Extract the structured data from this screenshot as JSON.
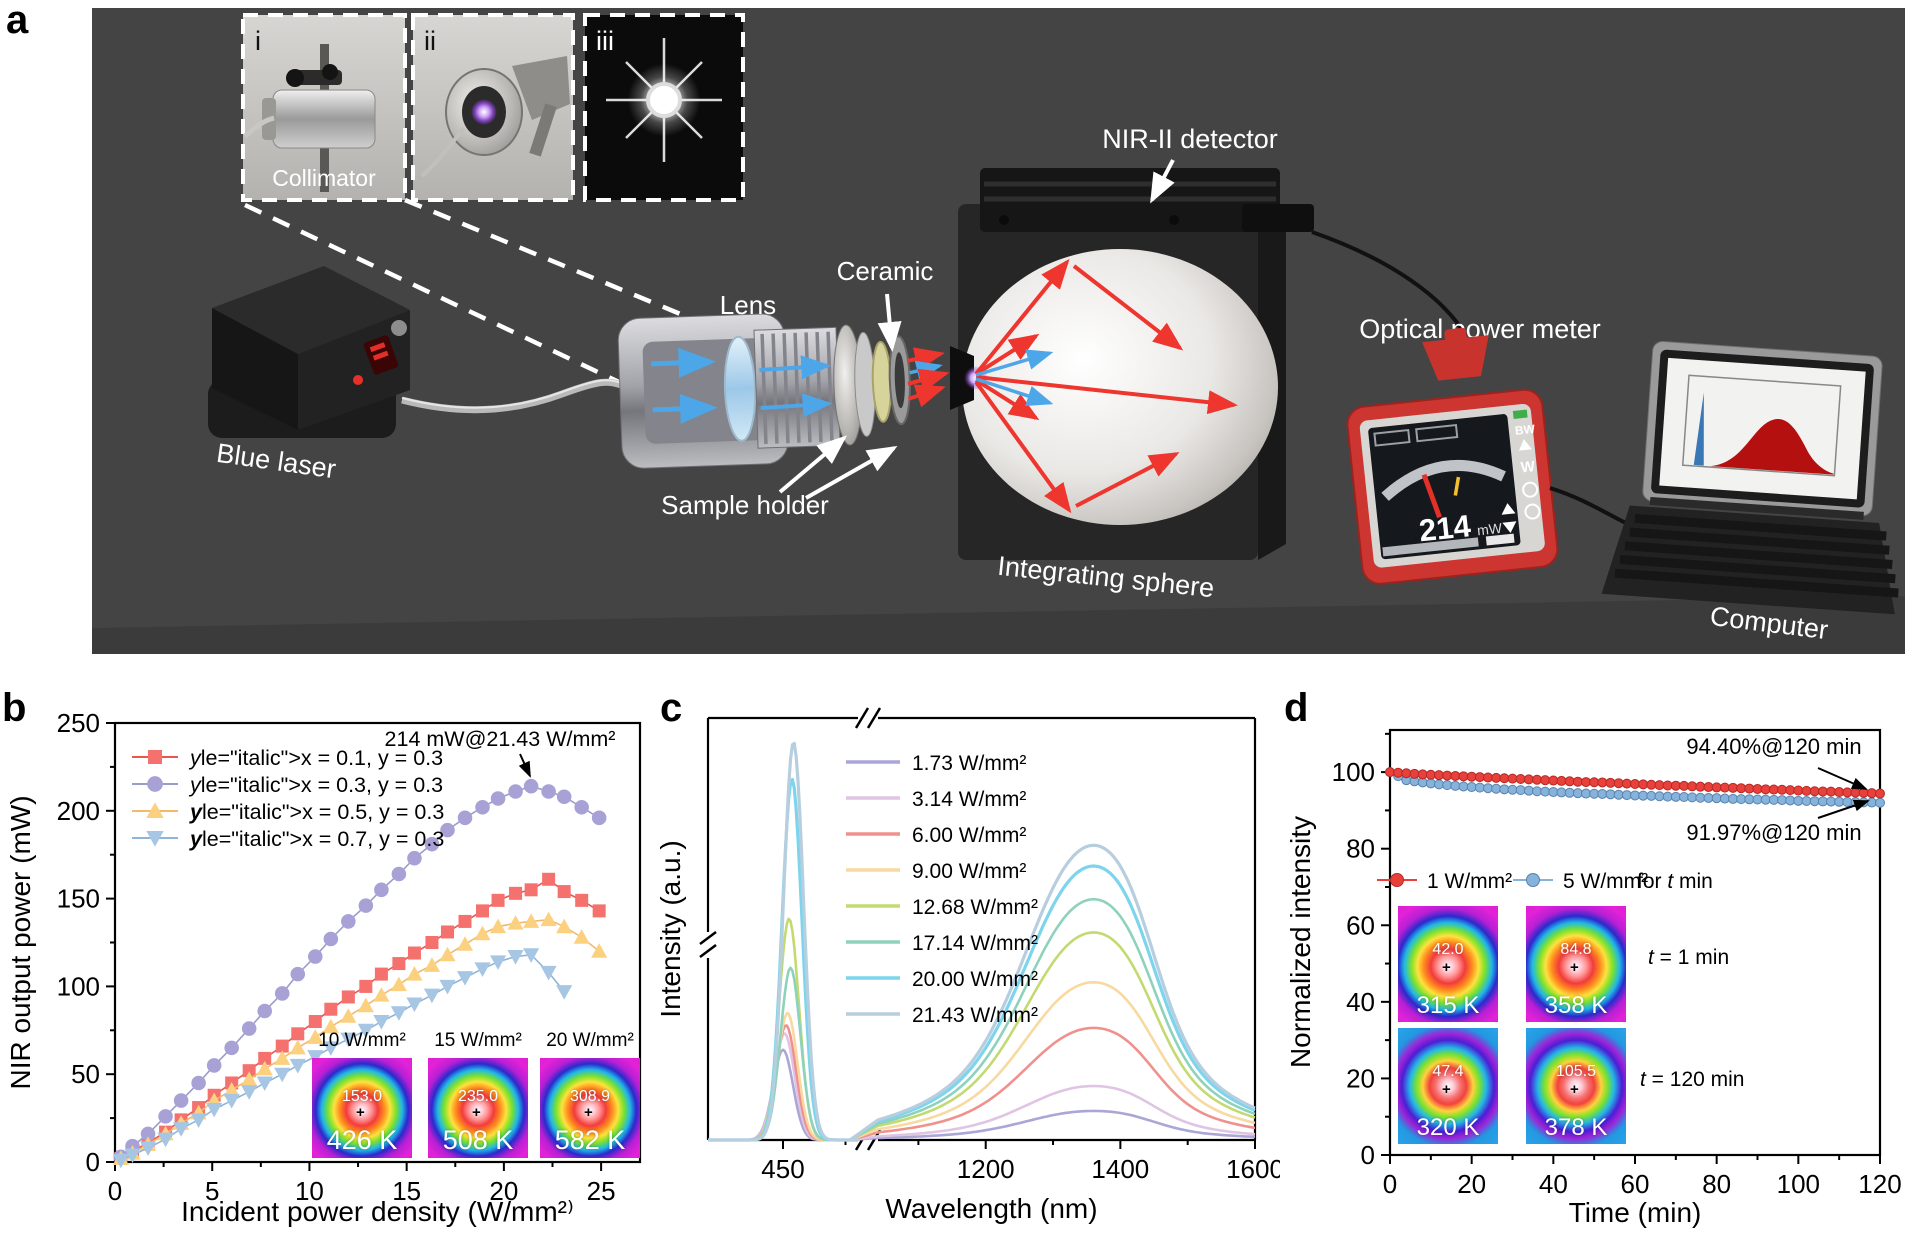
{
  "panel_a": {
    "label": "a",
    "background": "#444444",
    "insets": {
      "i": {
        "label": "i",
        "caption": "Collimator"
      },
      "ii": {
        "label": "ii"
      },
      "iii": {
        "label": "iii"
      }
    },
    "labels": {
      "blue_laser": "Blue laser",
      "lens": "Lens",
      "ceramic": "Ceramic",
      "sample_holder": "Sample holder",
      "nir_detector": "NIR-II detector",
      "integrating_sphere": "Integrating sphere",
      "optical_power_meter": "Optical power meter",
      "computer": "Computer"
    },
    "meter": {
      "value": "214",
      "unit": "mW"
    }
  },
  "chart_data": [
    {
      "panel": "b",
      "letter": "b",
      "type": "scatter",
      "xlabel": "Incident power density (W/mm²⁾",
      "ylabel": "NIR output power (mW)",
      "xlim": [
        0,
        27
      ],
      "ylim": [
        0,
        250
      ],
      "xticks": [
        0,
        5,
        10,
        15,
        20,
        25
      ],
      "yticks": [
        0,
        50,
        100,
        150,
        200,
        250
      ],
      "annotation": "214 mW@21.43 W/mm²",
      "series": [
        {
          "label": "x = 0.1, y = 0.3",
          "marker": "square",
          "color": "#f4716d",
          "line": "#e85650",
          "boldY": false,
          "x": [
            0.3,
            0.9,
            1.7,
            2.6,
            3.4,
            4.3,
            5.1,
            6,
            6.9,
            7.7,
            8.6,
            9.4,
            10.3,
            11.1,
            12,
            12.9,
            13.7,
            14.6,
            15.4,
            16.3,
            17.1,
            18,
            18.9,
            19.7,
            20.6,
            21.4,
            22.3,
            23.1,
            24,
            24.9
          ],
          "y": [
            2,
            6,
            11,
            17,
            24,
            31,
            38,
            45,
            52,
            59,
            66,
            73,
            80,
            87,
            94,
            100,
            107,
            113,
            119,
            125,
            131,
            137,
            143,
            149,
            153,
            155,
            161,
            154,
            149,
            143
          ]
        },
        {
          "label": "x = 0.3, y = 0.3",
          "marker": "circle",
          "color": "#a7a1d6",
          "line": "#9a9cc9",
          "boldY": false,
          "x": [
            0.3,
            0.9,
            1.7,
            2.6,
            3.4,
            4.3,
            5.1,
            6,
            6.9,
            7.7,
            8.6,
            9.4,
            10.3,
            11.1,
            12,
            12.9,
            13.7,
            14.6,
            15.4,
            16.3,
            17.1,
            18,
            18.9,
            19.7,
            20.6,
            21.4,
            22.3,
            23.1,
            24,
            24.9
          ],
          "y": [
            3,
            9,
            16,
            26,
            35,
            45,
            55,
            65,
            76,
            86,
            96,
            107,
            117,
            127,
            137,
            146,
            155,
            164,
            173,
            181,
            189,
            196,
            202,
            207,
            211,
            214,
            211,
            208,
            202,
            196
          ]
        },
        {
          "label": "x = 0.5, y = 0.3",
          "marker": "triangle-up",
          "color": "#fbd180",
          "line": "#f3b96a",
          "boldY": true,
          "x": [
            0.3,
            0.9,
            1.7,
            2.6,
            3.4,
            4.3,
            5.1,
            6,
            6.9,
            7.7,
            8.6,
            9.4,
            10.3,
            11.1,
            12,
            12.9,
            13.7,
            14.6,
            15.4,
            16.3,
            17.1,
            18,
            18.9,
            19.7,
            20.6,
            21.4,
            22.3,
            23.1,
            24,
            24.9
          ],
          "y": [
            2,
            5,
            10,
            16,
            22,
            28,
            35,
            41,
            47,
            53,
            59,
            65,
            71,
            77,
            83,
            89,
            95,
            101,
            107,
            112,
            118,
            124,
            130,
            134,
            136,
            137,
            138,
            134,
            128,
            120
          ]
        },
        {
          "label": "x = 0.7, y = 0.3",
          "marker": "triangle-down",
          "color": "#a6c6e4",
          "line": "#8fb4d8",
          "boldY": true,
          "x": [
            0.3,
            0.9,
            1.7,
            2.6,
            3.4,
            4.3,
            5.1,
            6,
            6.9,
            7.7,
            8.6,
            9.4,
            10.3,
            11.1,
            12,
            12.9,
            13.7,
            14.6,
            15.4,
            16.3,
            17.1,
            18,
            18.9,
            19.7,
            20.6,
            21.4,
            22.3,
            23.1
          ],
          "y": [
            1,
            4,
            8,
            13,
            19,
            24,
            30,
            35,
            40,
            45,
            50,
            55,
            60,
            65,
            70,
            75,
            80,
            85,
            90,
            95,
            100,
            105,
            110,
            114,
            117,
            118,
            108,
            97
          ]
        }
      ],
      "insets": [
        {
          "title": "10 W/mm²",
          "center_value": "153.0",
          "temperature": "426 K"
        },
        {
          "title": "15 W/mm²",
          "center_value": "235.0",
          "temperature": "508 K"
        },
        {
          "title": "20 W/mm²",
          "center_value": "308.9",
          "temperature": "582 K"
        }
      ]
    },
    {
      "panel": "c",
      "letter": "c",
      "type": "line",
      "xlabel": "Wavelength (nm)",
      "ylabel": "Intensity (a.u.)",
      "xticks": [
        450,
        1200,
        1400,
        1600
      ],
      "axis_break": true,
      "blue_peak_wavelength": 452,
      "nir_peak_wavelength": 1345,
      "series": [
        {
          "label": "1.73 W/mm²",
          "color": "#aaa6d6",
          "blue_peak": 0.22,
          "nir_peak": 0.07
        },
        {
          "label": "3.14 W/mm²",
          "color": "#e0c4e4",
          "blue_peak": 0.26,
          "nir_peak": 0.13
        },
        {
          "label": "6.00 W/mm²",
          "color": "#f0918d",
          "blue_peak": 0.28,
          "nir_peak": 0.27
        },
        {
          "label": "9.00 W/mm²",
          "color": "#f8d9a0",
          "blue_peak": 0.31,
          "nir_peak": 0.38
        },
        {
          "label": "12.68 W/mm²",
          "color": "#c2da70",
          "blue_peak": 0.54,
          "nir_peak": 0.5
        },
        {
          "label": "17.14 W/mm²",
          "color": "#8ed2bc",
          "blue_peak": 0.42,
          "nir_peak": 0.58
        },
        {
          "label": "20.00 W/mm²",
          "color": "#7cd5ec",
          "blue_peak": 0.88,
          "nir_peak": 0.66
        },
        {
          "label": "21.43 W/mm²",
          "color": "#b7cedf",
          "blue_peak": 0.97,
          "nir_peak": 0.71
        }
      ]
    },
    {
      "panel": "d",
      "letter": "d",
      "type": "scatter",
      "xlabel": "Time (min)",
      "ylabel": "Normalized intensity",
      "xlim": [
        0,
        120
      ],
      "ylim": [
        0,
        111
      ],
      "xticks": [
        0,
        20,
        40,
        60,
        80,
        100,
        120
      ],
      "yticks": [
        0,
        20,
        40,
        60,
        80,
        100
      ],
      "annotations": [
        "94.40%@120 min",
        "91.97%@120 min"
      ],
      "legend_suffix": "for t min",
      "t_step": 4,
      "series": [
        {
          "label": "1 W/mm²",
          "color": "#e8413c",
          "edge": "#b52824",
          "y": [
            100,
            99.7,
            99.4,
            99.2,
            99.0,
            98.8,
            98.6,
            98.4,
            98.2,
            98.0,
            97.8,
            97.6,
            97.4,
            97.3,
            97.1,
            96.9,
            96.7,
            96.5,
            96.4,
            96.2,
            96.0,
            95.9,
            95.7,
            95.5,
            95.4,
            95.2,
            95.0,
            94.9,
            94.7,
            94.6,
            94.4
          ]
        },
        {
          "label": "5 W/mm²",
          "color": "#85b3dc",
          "edge": "#5b82ab",
          "y": [
            100,
            97.9,
            97.3,
            96.8,
            96.4,
            96.1,
            95.8,
            95.5,
            95.3,
            95.0,
            94.8,
            94.6,
            94.4,
            94.3,
            94.1,
            93.9,
            93.8,
            93.6,
            93.5,
            93.3,
            93.2,
            93.0,
            92.9,
            92.8,
            92.7,
            92.5,
            92.4,
            92.3,
            92.2,
            92.1,
            92.0
          ]
        }
      ],
      "inset_rows": [
        "t = 1 min",
        "t = 120 min"
      ],
      "insets": [
        {
          "center_value": "42.0",
          "temperature": "315 K"
        },
        {
          "center_value": "84.8",
          "temperature": "358 K"
        },
        {
          "center_value": "47.4",
          "temperature": "320 K"
        },
        {
          "center_value": "105.5",
          "temperature": "378 K"
        }
      ]
    }
  ]
}
